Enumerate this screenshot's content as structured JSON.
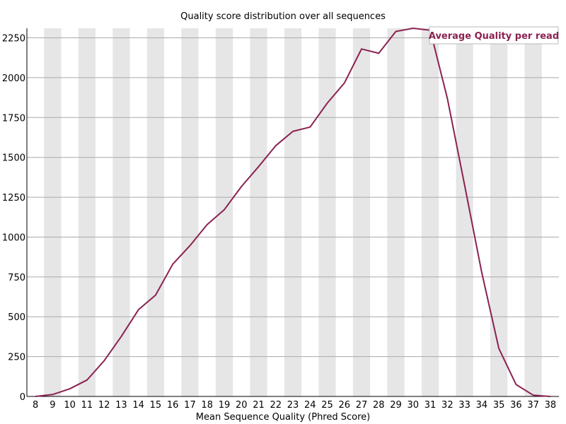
{
  "chart_data": {
    "type": "line",
    "title": "Quality score distribution over all sequences",
    "xlabel": "Mean Sequence Quality (Phred Score)",
    "ylabel": "",
    "x": [
      8,
      9,
      10,
      11,
      12,
      13,
      14,
      15,
      16,
      17,
      18,
      19,
      20,
      21,
      22,
      23,
      24,
      25,
      26,
      27,
      28,
      29,
      30,
      31,
      32,
      33,
      34,
      35,
      36,
      37,
      38
    ],
    "x_tick_labels": [
      "8",
      "9",
      "10",
      "11",
      "12",
      "13",
      "14",
      "15",
      "16",
      "17",
      "18",
      "19",
      "20",
      "21",
      "22",
      "23",
      "24",
      "25",
      "26",
      "27",
      "28",
      "29",
      "30",
      "31",
      "32",
      "33",
      "34",
      "35",
      "36",
      "37",
      "38"
    ],
    "series": [
      {
        "name": "Average Quality per read",
        "color": "#8b2252",
        "values": [
          0,
          12,
          48,
          103,
          224,
          376,
          544,
          636,
          830,
          946,
          1078,
          1172,
          1317,
          1442,
          1573,
          1663,
          1690,
          1840,
          1967,
          2180,
          2153,
          2290,
          2310,
          2298,
          1870,
          1328,
          780,
          301,
          75,
          8,
          0
        ]
      }
    ],
    "ylim": [
      0,
      2310
    ],
    "y_ticks": [
      0,
      250,
      500,
      750,
      1000,
      1250,
      1500,
      1750,
      2000,
      2250
    ],
    "y_tick_labels": [
      "0",
      "250",
      "500",
      "750",
      "1000",
      "1250",
      "1500",
      "1750",
      "2000",
      "2250"
    ],
    "grid": true,
    "alternating_column_shading": true,
    "legend": "top-right",
    "colors": {
      "line": "#8b2252",
      "shade": "#e6e6e6",
      "grid": "#aaaaaa",
      "axis": "#000000"
    }
  }
}
